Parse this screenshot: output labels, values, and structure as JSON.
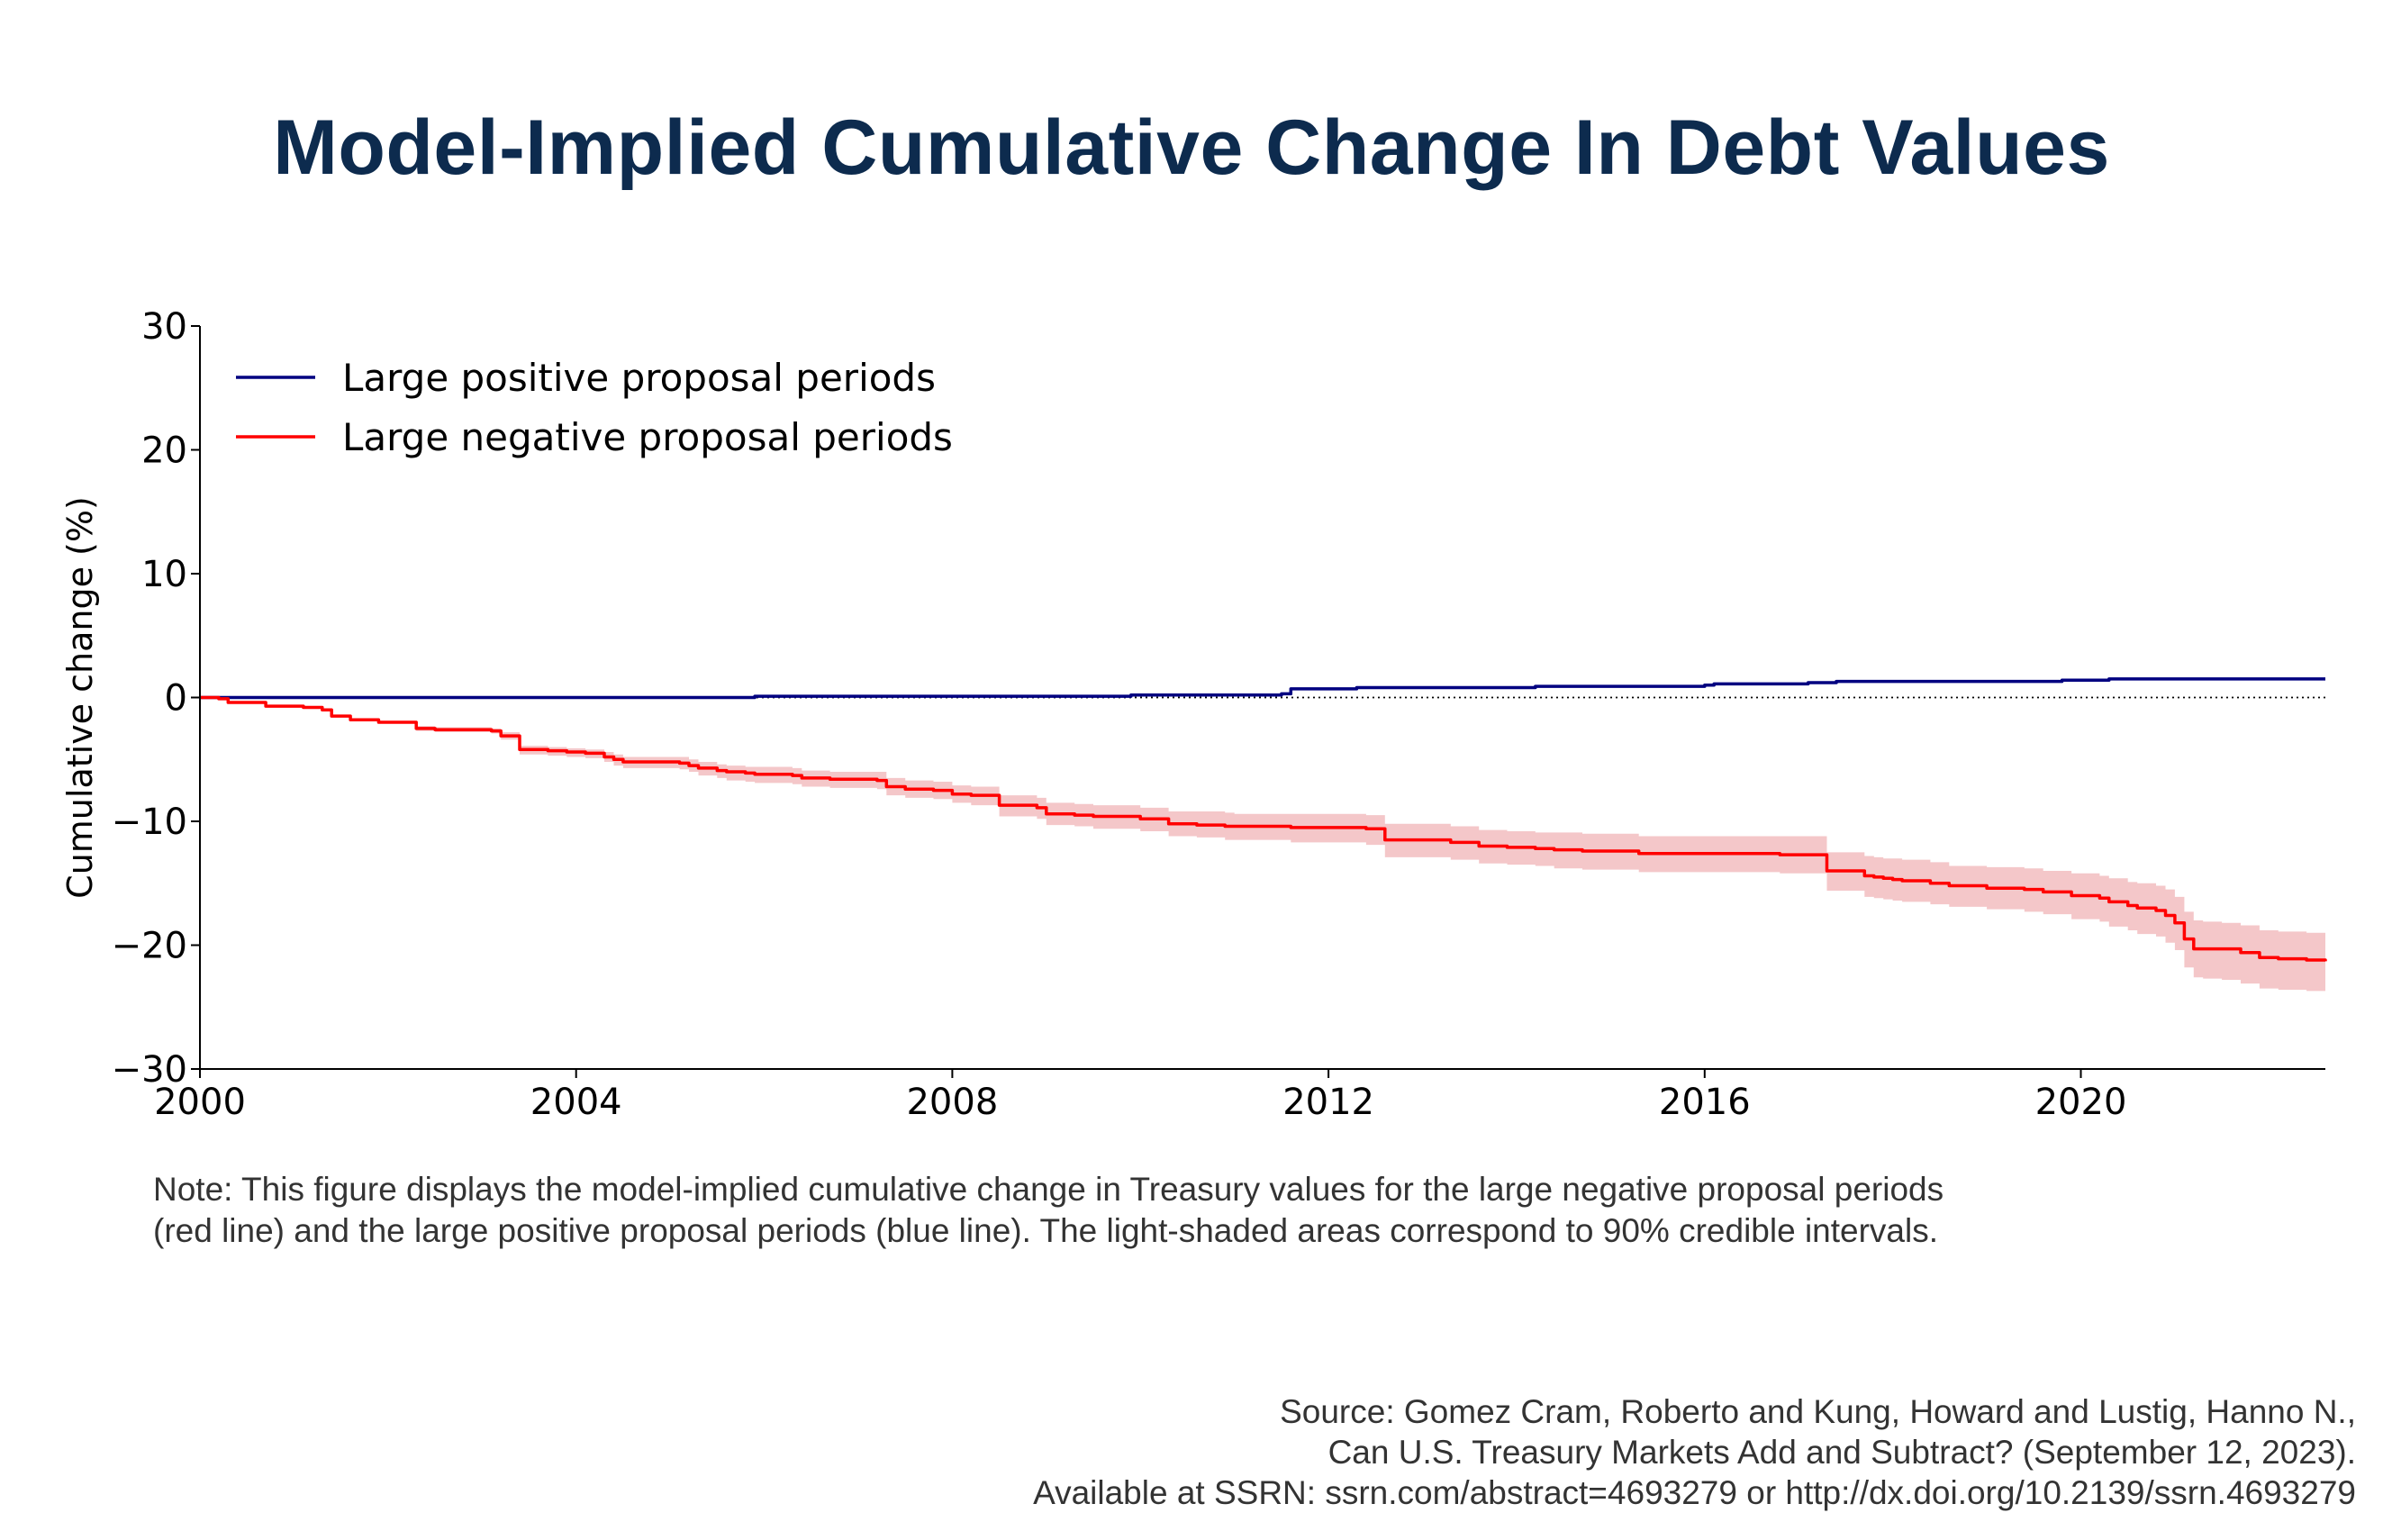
{
  "title": "Model-Implied Cumulative Change In Debt Values",
  "note": "Note: This figure displays the model-implied cumulative change in Treasury values for the large negative proposal periods (red line) and the large positive proposal periods (blue line). The light-shaded areas correspond to 90% credible intervals.",
  "source": {
    "line1": "Source: Gomez Cram, Roberto and Kung, Howard and Lustig, Hanno N.,",
    "line2": "Can U.S. Treasury Markets Add and Subtract? (September 12, 2023).",
    "line3": "Available at SSRN: ssrn.com/abstract=4693279 or http://dx.doi.org/10.2139/ssrn.4693279"
  },
  "colors": {
    "title": "#0d2b4e",
    "positive": "#000080",
    "negative": "#ff0000",
    "band": "#f4c7c9",
    "text": "#333333"
  },
  "chart_data": {
    "type": "line",
    "title": "Model-Implied Cumulative Change In Debt Values",
    "xlabel": "",
    "ylabel": "Cumulative change (%)",
    "xlim": [
      2000,
      2022.6
    ],
    "ylim": [
      -30,
      30
    ],
    "xticks": [
      2000,
      2004,
      2008,
      2012,
      2016,
      2020
    ],
    "xtick_labels": [
      "2000",
      "2004",
      "2008",
      "2012",
      "2016",
      "2020"
    ],
    "yticks": [
      30,
      20,
      10,
      0,
      -10,
      -20,
      -30
    ],
    "ytick_labels": [
      "30",
      "20",
      "10",
      "0",
      "−10",
      "−20",
      "−30"
    ],
    "zero_reference_line": "dotted",
    "grid": false,
    "legend_position": "top-left",
    "series": [
      {
        "name": "Large positive proposal periods",
        "color": "#000080",
        "x": [
          2000,
          2005.8,
          2005.9,
          2009.8,
          2009.9,
          2011.5,
          2011.6,
          2012.2,
          2012.3,
          2014.1,
          2014.2,
          2015.7,
          2016.0,
          2016.1,
          2017.0,
          2017.1,
          2017.3,
          2017.4,
          2019.7,
          2019.8,
          2020.2,
          2020.3,
          2022.6
        ],
        "y": [
          0,
          0,
          0.1,
          0.1,
          0.2,
          0.3,
          0.7,
          0.7,
          0.8,
          0.8,
          0.9,
          0.9,
          1.0,
          1.1,
          1.1,
          1.2,
          1.2,
          1.3,
          1.3,
          1.4,
          1.4,
          1.5,
          1.5
        ]
      },
      {
        "name": "Large negative proposal periods",
        "color": "#ff0000",
        "band": "90% credible interval",
        "x": [
          2000,
          2000.2,
          2000.3,
          2000.7,
          2001.1,
          2001.3,
          2001.4,
          2001.6,
          2001.9,
          2002.2,
          2002.3,
          2002.5,
          2002.8,
          2003.1,
          2003.2,
          2003.4,
          2003.7,
          2003.9,
          2004.1,
          2004.3,
          2004.4,
          2004.5,
          2005.1,
          2005.2,
          2005.3,
          2005.5,
          2005.6,
          2005.8,
          2005.9,
          2006.3,
          2006.4,
          2006.7,
          2007.2,
          2007.3,
          2007.5,
          2007.8,
          2008.0,
          2008.2,
          2008.5,
          2008.9,
          2009.0,
          2009.3,
          2009.5,
          2010.0,
          2010.3,
          2010.6,
          2010.9,
          2011.0,
          2011.6,
          2012.0,
          2012.4,
          2012.6,
          2012.9,
          2013.0,
          2013.3,
          2013.6,
          2013.9,
          2014.2,
          2014.4,
          2014.7,
          2015.0,
          2015.3,
          2015.8,
          2016.2,
          2016.3,
          2016.8,
          2017.3,
          2017.7,
          2017.8,
          2017.9,
          2018.0,
          2018.1,
          2018.4,
          2018.6,
          2019.0,
          2019.4,
          2019.6,
          2019.9,
          2020.2,
          2020.3,
          2020.5,
          2020.6,
          2020.8,
          2020.9,
          2021.0,
          2021.1,
          2021.2,
          2021.3,
          2021.5,
          2021.7,
          2021.9,
          2022.1,
          2022.4,
          2022.6
        ],
        "y": [
          0,
          -0.1,
          -0.4,
          -0.7,
          -0.8,
          -1.0,
          -1.5,
          -1.8,
          -2.0,
          -2.0,
          -2.5,
          -2.6,
          -2.6,
          -2.7,
          -3.1,
          -4.2,
          -4.3,
          -4.4,
          -4.5,
          -4.8,
          -5.0,
          -5.2,
          -5.3,
          -5.5,
          -5.7,
          -5.9,
          -6.0,
          -6.1,
          -6.2,
          -6.3,
          -6.5,
          -6.6,
          -6.7,
          -7.2,
          -7.4,
          -7.5,
          -7.8,
          -7.9,
          -8.7,
          -8.9,
          -9.4,
          -9.5,
          -9.6,
          -9.8,
          -10.2,
          -10.3,
          -10.4,
          -10.4,
          -10.5,
          -10.5,
          -10.6,
          -11.5,
          -11.5,
          -11.5,
          -11.7,
          -12.0,
          -12.1,
          -12.2,
          -12.3,
          -12.4,
          -12.4,
          -12.6,
          -12.6,
          -12.6,
          -12.6,
          -12.7,
          -14.0,
          -14.4,
          -14.5,
          -14.6,
          -14.7,
          -14.8,
          -15.0,
          -15.2,
          -15.4,
          -15.5,
          -15.7,
          -16.0,
          -16.2,
          -16.5,
          -16.8,
          -17.0,
          -17.2,
          -17.6,
          -18.2,
          -19.5,
          -20.3,
          -20.3,
          -20.3,
          -20.6,
          -21.0,
          -21.1,
          -21.2,
          -21.3
        ],
        "lower": [
          0,
          -0.1,
          -0.4,
          -0.7,
          -0.8,
          -1.0,
          -1.5,
          -1.8,
          -2.0,
          -2.0,
          -2.7,
          -2.8,
          -2.8,
          -2.9,
          -3.4,
          -4.6,
          -4.7,
          -4.8,
          -4.9,
          -5.2,
          -5.5,
          -5.7,
          -5.8,
          -6.0,
          -6.3,
          -6.5,
          -6.7,
          -6.8,
          -6.9,
          -7.0,
          -7.2,
          -7.3,
          -7.4,
          -7.9,
          -8.1,
          -8.2,
          -8.5,
          -8.7,
          -9.6,
          -9.8,
          -10.3,
          -10.4,
          -10.6,
          -10.8,
          -11.2,
          -11.3,
          -11.5,
          -11.5,
          -11.7,
          -11.7,
          -11.9,
          -12.9,
          -12.9,
          -12.9,
          -13.1,
          -13.4,
          -13.5,
          -13.6,
          -13.8,
          -13.9,
          -13.9,
          -14.1,
          -14.1,
          -14.1,
          -14.1,
          -14.2,
          -15.6,
          -16.1,
          -16.2,
          -16.3,
          -16.4,
          -16.5,
          -16.7,
          -16.9,
          -17.1,
          -17.3,
          -17.5,
          -17.9,
          -18.1,
          -18.5,
          -18.8,
          -19.1,
          -19.3,
          -19.8,
          -20.4,
          -21.8,
          -22.6,
          -22.7,
          -22.8,
          -23.1,
          -23.5,
          -23.6,
          -23.7,
          -23.8
        ],
        "upper": [
          0,
          -0.1,
          -0.4,
          -0.7,
          -0.8,
          -1.0,
          -1.5,
          -1.8,
          -2.0,
          -2.0,
          -2.3,
          -2.4,
          -2.4,
          -2.5,
          -2.8,
          -3.9,
          -4.0,
          -4.1,
          -4.2,
          -4.4,
          -4.6,
          -4.8,
          -4.8,
          -5.0,
          -5.2,
          -5.4,
          -5.5,
          -5.6,
          -5.6,
          -5.7,
          -5.9,
          -6.0,
          -6.0,
          -6.5,
          -6.7,
          -6.8,
          -7.1,
          -7.2,
          -7.9,
          -8.1,
          -8.5,
          -8.6,
          -8.7,
          -8.9,
          -9.2,
          -9.2,
          -9.3,
          -9.4,
          -9.4,
          -9.4,
          -9.5,
          -10.2,
          -10.2,
          -10.2,
          -10.4,
          -10.7,
          -10.8,
          -10.9,
          -10.9,
          -11.0,
          -11.0,
          -11.2,
          -11.2,
          -11.2,
          -11.2,
          -11.2,
          -12.5,
          -12.8,
          -12.9,
          -13.0,
          -13.0,
          -13.1,
          -13.3,
          -13.6,
          -13.7,
          -13.8,
          -14.0,
          -14.2,
          -14.4,
          -14.6,
          -14.9,
          -15.0,
          -15.2,
          -15.5,
          -16.1,
          -17.3,
          -18.0,
          -18.1,
          -18.2,
          -18.4,
          -18.8,
          -18.9,
          -19.0,
          -19.1
        ]
      }
    ]
  }
}
